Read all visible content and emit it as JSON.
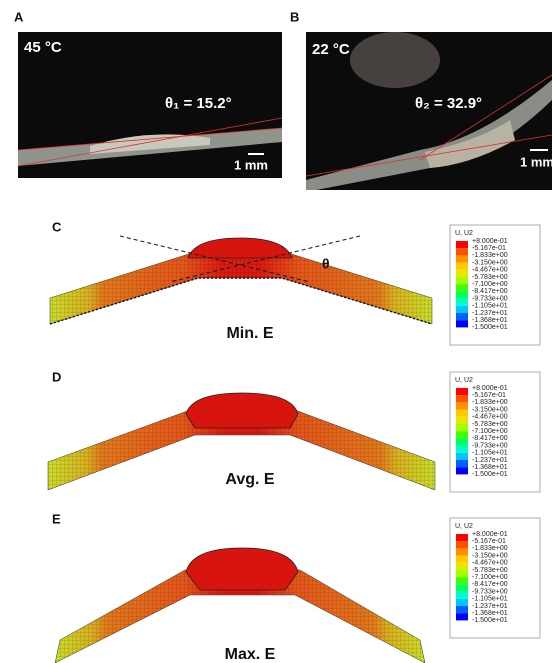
{
  "photos": [
    {
      "label": "A",
      "temperature": "45 °C",
      "angle": "θ₁ = 15.2°",
      "scale": "1 mm"
    },
    {
      "label": "B",
      "temperature": "22 °C",
      "angle": "θ₂ = 32.9°",
      "scale": "1 mm"
    }
  ],
  "simulations": [
    {
      "label": "C",
      "caption": "Min. E",
      "angle_symbol": "θ",
      "legend": {
        "title": "U, U2",
        "values": [
          "+8.000e-01",
          "-5.167e-01",
          "-1.833e+00",
          "-3.150e+00",
          "-4.467e+00",
          "-5.783e+00",
          "-7.100e+00",
          "-8.417e+00",
          "-9.733e+00",
          "-1.105e+01",
          "-1.237e+01",
          "-1.368e+01",
          "-1.500e+01"
        ]
      }
    },
    {
      "label": "D",
      "caption": "Avg. E",
      "legend": {
        "title": "U, U2",
        "values": [
          "+8.000e-01",
          "-5.167e-01",
          "-1.833e+00",
          "-3.150e+00",
          "-4.467e+00",
          "-5.783e+00",
          "-7.100e+00",
          "-8.417e+00",
          "-9.733e+00",
          "-1.105e+01",
          "-1.237e+01",
          "-1.368e+01",
          "-1.500e+01"
        ]
      }
    },
    {
      "label": "E",
      "caption": "Max. E",
      "legend": {
        "title": "U, U2",
        "values": [
          "+8.000e-01",
          "-5.167e-01",
          "-1.833e+00",
          "-3.150e+00",
          "-4.467e+00",
          "-5.783e+00",
          "-7.100e+00",
          "-8.417e+00",
          "-9.733e+00",
          "-1.105e+01",
          "-1.237e+01",
          "-1.368e+01",
          "-1.500e+01"
        ]
      }
    }
  ]
}
